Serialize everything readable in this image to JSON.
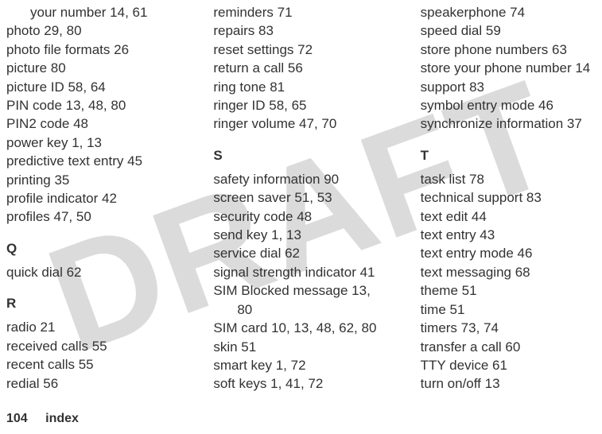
{
  "watermark": "DRAFT",
  "columns": [
    {
      "groups": [
        {
          "letter": null,
          "entries": [
            {
              "text": "your number  14, 61",
              "indent": true
            },
            {
              "text": "photo  29, 80"
            },
            {
              "text": "photo file formats  26"
            },
            {
              "text": "picture  80"
            },
            {
              "text": "picture ID  58, 64"
            },
            {
              "text": "PIN code  13, 48, 80"
            },
            {
              "text": "PIN2 code  48"
            },
            {
              "text": "power key  1, 13"
            },
            {
              "text": "predictive text entry  45"
            },
            {
              "text": "printing  35"
            },
            {
              "text": "profile indicator  42"
            },
            {
              "text": "profiles  47, 50"
            }
          ]
        },
        {
          "letter": "Q",
          "entries": [
            {
              "text": "quick dial  62"
            }
          ]
        },
        {
          "letter": "R",
          "entries": [
            {
              "text": "radio  21"
            },
            {
              "text": "received calls  55"
            },
            {
              "text": "recent calls  55"
            },
            {
              "text": "redial  56"
            }
          ]
        }
      ]
    },
    {
      "groups": [
        {
          "letter": null,
          "entries": [
            {
              "text": "reminders  71"
            },
            {
              "text": "repairs  83"
            },
            {
              "text": "reset settings  72"
            },
            {
              "text": "return a call  56"
            },
            {
              "text": "ring tone  81"
            },
            {
              "text": "ringer ID  58, 65"
            },
            {
              "text": "ringer volume  47, 70"
            }
          ]
        },
        {
          "letter": "S",
          "entries": [
            {
              "text": "safety information  90"
            },
            {
              "text": "screen saver  51, 53"
            },
            {
              "text": "security code  48"
            },
            {
              "text": "send key  1, 13"
            },
            {
              "text": "service dial  62"
            },
            {
              "text": "signal strength indicator  41"
            },
            {
              "text": "SIM Blocked message  13,"
            },
            {
              "text": "80",
              "indent": true
            },
            {
              "text": "SIM card  10, 13, 48, 62, 80"
            },
            {
              "text": "skin  51"
            },
            {
              "text": "smart key  1, 72"
            },
            {
              "text": "soft keys  1, 41, 72"
            }
          ]
        }
      ]
    },
    {
      "groups": [
        {
          "letter": null,
          "entries": [
            {
              "text": "speakerphone  74"
            },
            {
              "text": "speed dial  59"
            },
            {
              "text": "store phone numbers  63"
            },
            {
              "text": "store your phone number  14"
            },
            {
              "text": "support  83"
            },
            {
              "text": "symbol entry mode  46"
            },
            {
              "text": "synchronize information  37"
            }
          ]
        },
        {
          "letter": "T",
          "entries": [
            {
              "text": "task list  78"
            },
            {
              "text": "technical support  83"
            },
            {
              "text": "text edit  44"
            },
            {
              "text": "text entry  43"
            },
            {
              "text": "text entry mode  46"
            },
            {
              "text": "text messaging  68"
            },
            {
              "text": "theme  51"
            },
            {
              "text": "time  51"
            },
            {
              "text": "timers  73, 74"
            },
            {
              "text": "transfer a call  60"
            },
            {
              "text": "TTY device  61"
            },
            {
              "text": "turn on/off  13"
            }
          ]
        }
      ]
    }
  ],
  "footer": {
    "page_number": "104",
    "label": "index"
  }
}
